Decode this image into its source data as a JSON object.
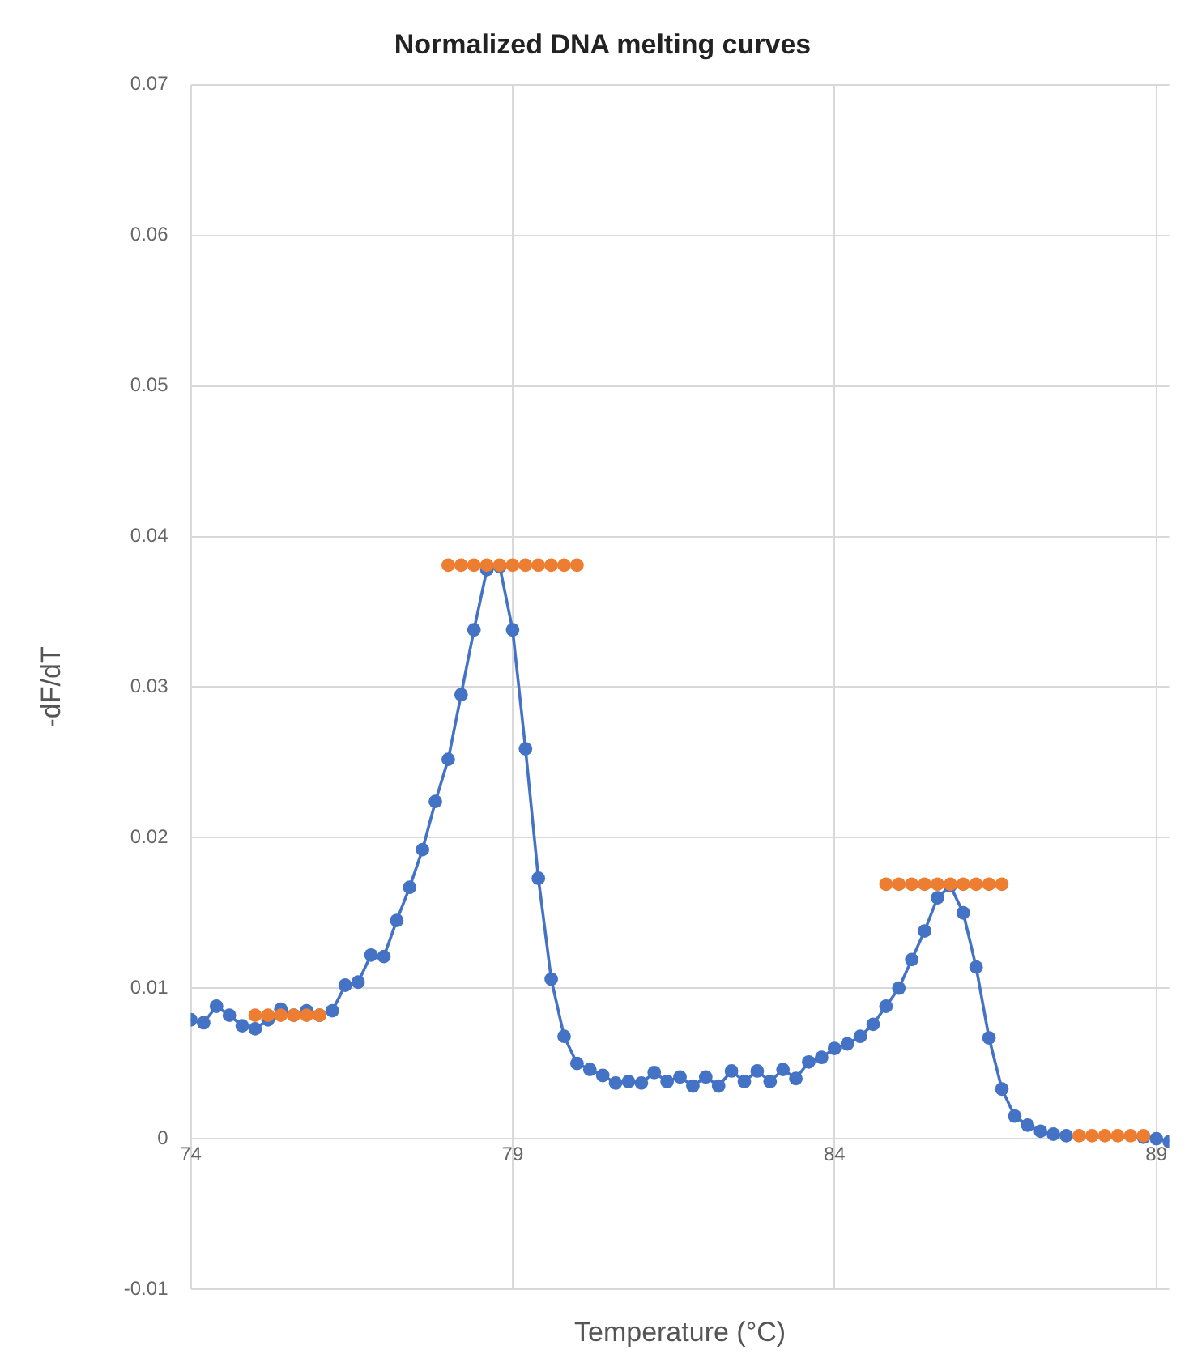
{
  "chart_data": {
    "type": "line",
    "title": "Normalized DNA melting curves",
    "xlabel": "Temperature (°C)",
    "ylabel": "-dF/dT",
    "xlim": [
      74,
      89.2
    ],
    "xticks": [
      74,
      79,
      84,
      89
    ],
    "ylim": [
      -0.01,
      0.07
    ],
    "yticks": [
      -0.01,
      0,
      0.01,
      0.02,
      0.03,
      0.04,
      0.05,
      0.06,
      0.07
    ],
    "grid": true,
    "legend": false,
    "marker": "circle",
    "line_style": "solid",
    "series": [
      {
        "type": "line",
        "color": "#4472c4",
        "x": [
          74,
          74.2,
          74.4,
          74.6,
          74.8,
          75,
          75.2,
          75.4,
          75.6,
          75.8,
          76,
          76.2,
          76.4,
          76.6,
          76.8,
          77,
          77.2,
          77.4,
          77.6,
          77.8,
          78,
          78.2,
          78.4,
          78.6,
          78.8,
          79,
          79.2,
          79.4,
          79.6,
          79.8,
          80,
          80.2,
          80.4,
          80.6,
          80.8,
          81,
          81.2,
          81.4,
          81.6,
          81.8,
          82,
          82.2,
          82.4,
          82.6,
          82.8,
          83,
          83.2,
          83.4,
          83.6,
          83.8,
          84,
          84.2,
          84.4,
          84.6,
          84.8,
          85,
          85.2,
          85.4,
          85.6,
          85.8,
          86,
          86.2,
          86.4,
          86.6,
          86.8,
          87,
          87.2,
          87.4,
          87.6,
          87.8,
          88,
          88.2,
          88.4,
          88.6,
          88.8,
          89,
          89.2
        ],
        "values": [
          0.0079,
          0.0077,
          0.0088,
          0.0082,
          0.0075,
          0.0073,
          0.0079,
          0.0086,
          0.0082,
          0.0085,
          0.0082,
          0.0085,
          0.0102,
          0.0104,
          0.0122,
          0.0121,
          0.0145,
          0.0167,
          0.0192,
          0.0224,
          0.0252,
          0.0295,
          0.0338,
          0.0378,
          0.038,
          0.0338,
          0.0259,
          0.0173,
          0.0106,
          0.0068,
          0.005,
          0.0046,
          0.0042,
          0.0037,
          0.0038,
          0.0037,
          0.0044,
          0.0038,
          0.0041,
          0.0035,
          0.0041,
          0.0035,
          0.0045,
          0.0038,
          0.0045,
          0.0038,
          0.0046,
          0.004,
          0.0051,
          0.0054,
          0.006,
          0.0063,
          0.0068,
          0.0076,
          0.0088,
          0.01,
          0.0119,
          0.0138,
          0.016,
          0.0168,
          0.015,
          0.0114,
          0.0067,
          0.0033,
          0.0015,
          0.0009,
          0.0005,
          0.0003,
          0.0002,
          null,
          null,
          null,
          null,
          null,
          0.0001,
          0,
          -0.0002
        ]
      },
      {
        "type": "scatter",
        "color": "#ed7d31",
        "x": [
          75,
          75.2,
          75.4,
          75.6,
          75.8,
          76,
          78,
          78.2,
          78.4,
          78.6,
          78.8,
          79,
          79.2,
          79.4,
          79.6,
          79.8,
          80,
          84.8,
          85,
          85.2,
          85.4,
          85.6,
          85.8,
          86,
          86.2,
          86.4,
          86.6,
          87.8,
          88,
          88.2,
          88.4,
          88.6,
          88.8
        ],
        "values": [
          0.0082,
          0.0082,
          0.0082,
          0.0082,
          0.0082,
          0.0082,
          0.0381,
          0.0381,
          0.0381,
          0.0381,
          0.0381,
          0.0381,
          0.0381,
          0.0381,
          0.0381,
          0.0381,
          0.0381,
          0.0169,
          0.0169,
          0.0169,
          0.0169,
          0.0169,
          0.0169,
          0.0169,
          0.0169,
          0.0169,
          0.0169,
          0.0002,
          0.0002,
          0.0002,
          0.0002,
          0.0002,
          0.0002
        ]
      }
    ]
  }
}
